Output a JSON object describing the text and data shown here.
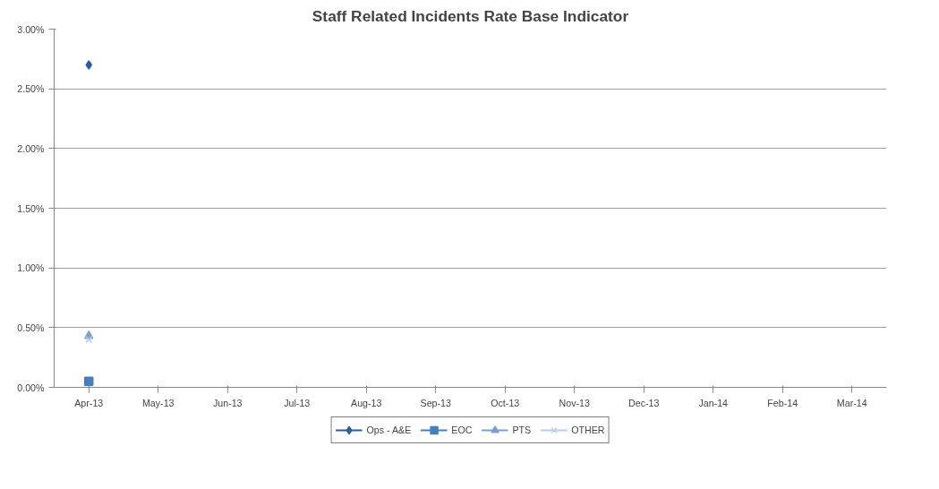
{
  "chart_data": {
    "type": "line",
    "title": "Staff Related Incidents Rate Base Indicator",
    "categories": [
      "Apr-13",
      "May-13",
      "Jun-13",
      "Jul-13",
      "Aug-13",
      "Sep-13",
      "Oct-13",
      "Nov-13",
      "Dec-13",
      "Jan-14",
      "Feb-14",
      "Mar-14"
    ],
    "series": [
      {
        "name": "Ops - A&E",
        "color": "#2e5d9a",
        "marker": "diamond",
        "values": [
          2.7,
          null,
          null,
          null,
          null,
          null,
          null,
          null,
          null,
          null,
          null,
          null
        ]
      },
      {
        "name": "EOC",
        "color": "#4a7ebb",
        "marker": "square",
        "values": [
          0.05,
          null,
          null,
          null,
          null,
          null,
          null,
          null,
          null,
          null,
          null,
          null
        ]
      },
      {
        "name": "PTS",
        "color": "#7f9fcf",
        "marker": "triangle",
        "values": [
          0.43,
          null,
          null,
          null,
          null,
          null,
          null,
          null,
          null,
          null,
          null,
          null
        ]
      },
      {
        "name": "OTHER",
        "color": "#b9cde5",
        "marker": "cross",
        "values": [
          0.4,
          null,
          null,
          null,
          null,
          null,
          null,
          null,
          null,
          null,
          null,
          null
        ]
      }
    ],
    "ylim": [
      0,
      3
    ],
    "yticks": [
      {
        "value": 0,
        "label": "0.00%"
      },
      {
        "value": 0.5,
        "label": "0.50%"
      },
      {
        "value": 1,
        "label": "1.00%"
      },
      {
        "value": 1.5,
        "label": "1.50%"
      },
      {
        "value": 2,
        "label": "2.00%"
      },
      {
        "value": 2.5,
        "label": "2.50%"
      },
      {
        "value": 3,
        "label": "3.00%"
      }
    ],
    "grid": "y",
    "legend": "bottom"
  }
}
